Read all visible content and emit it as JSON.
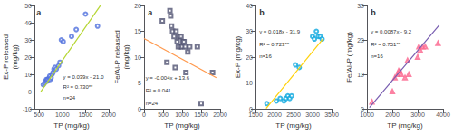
{
  "chart_data": [
    {
      "type": "scatter",
      "title": "a",
      "xlabel": "TP (mg/kg)",
      "ylabel": "Ex-P released\n(mg/kg)",
      "xlim": [
        400,
        2000
      ],
      "ylim": [
        -10,
        50
      ],
      "xticks": [
        500,
        1000,
        1500,
        2000
      ],
      "yticks": [
        -10,
        0,
        10,
        20,
        30,
        40,
        50
      ],
      "grid": false,
      "annotations": [
        "y = 0.039x - 21.0",
        "R² = 0.730**",
        "n=24"
      ],
      "series": [
        {
          "type": "scatter",
          "marker": "circle",
          "x": [
            590,
            620,
            640,
            660,
            670,
            680,
            700,
            720,
            730,
            740,
            760,
            780,
            800,
            820,
            840,
            870,
            920,
            950,
            980,
            1020,
            1200,
            1300,
            1500,
            1760
          ],
          "values": [
            4,
            5,
            6,
            7,
            6,
            7,
            7,
            8,
            9,
            7,
            8,
            10,
            11,
            13,
            14,
            13,
            15,
            17,
            30,
            29,
            32,
            36,
            45,
            38
          ]
        },
        {
          "type": "line",
          "line_style": "solid",
          "x": [
            538,
            1820
          ],
          "values": [
            -0.018,
            49.98
          ]
        }
      ]
    },
    {
      "type": "scatter",
      "title": "a",
      "xlabel": "TP (mg/kg)",
      "ylabel": "Fe/Al-P released\n(mg/kg)",
      "xlim": [
        0,
        2000
      ],
      "ylim": [
        0,
        20
      ],
      "xticks": [
        0,
        500,
        1000,
        1500,
        2000
      ],
      "yticks": [
        0,
        5,
        10,
        15,
        20
      ],
      "grid": false,
      "annotations": [
        "y = -0.004x + 13.6",
        "R² = 0.041",
        "n=24"
      ],
      "series": [
        {
          "type": "scatter",
          "marker": "square",
          "x": [
            480,
            600,
            680,
            700,
            720,
            750,
            790,
            820,
            840,
            870,
            900,
            920,
            950,
            970,
            1000,
            1020,
            1050,
            1080,
            1100,
            1150,
            1200,
            1400,
            1500,
            1800
          ],
          "values": [
            17,
            9,
            19,
            18,
            16,
            15,
            14,
            8,
            15,
            13,
            12,
            14,
            12,
            14,
            12,
            13,
            13,
            12,
            7,
            11,
            12,
            12,
            1,
            7
          ]
        },
        {
          "type": "line",
          "line_style": "solid",
          "x": [
            0,
            1900
          ],
          "values": [
            13.6,
            6
          ]
        }
      ]
    },
    {
      "type": "scatter",
      "title": "b",
      "xlabel": "TP (mg/kg)",
      "ylabel": "Ex-P (mg/kg)",
      "xlim": [
        1500,
        3500
      ],
      "ylim": [
        0,
        40
      ],
      "xticks": [
        1500,
        2000,
        2500,
        3000,
        3500
      ],
      "yticks": [
        0,
        10,
        20,
        30,
        40
      ],
      "grid": false,
      "annotations": [
        "y = 0.018x - 31.9",
        "R² = 0.723**",
        "n=16"
      ],
      "series": [
        {
          "type": "scatter",
          "marker": "circle",
          "x": [
            1800,
            2050,
            2150,
            2250,
            2300,
            2350,
            2400,
            2450,
            2550,
            2650,
            3000,
            3050,
            3100,
            3150,
            3200,
            3250
          ],
          "values": [
            2,
            3,
            4,
            3,
            4,
            5,
            4,
            5,
            17,
            16,
            28,
            27,
            30,
            28,
            28,
            27
          ]
        },
        {
          "type": "line",
          "line_style": "solid",
          "x": [
            1780,
            3280
          ],
          "values": [
            0.14,
            27.14
          ]
        }
      ]
    },
    {
      "type": "scatter",
      "title": "b",
      "xlabel": "TP (mg/kg)",
      "ylabel": "Fe/Al-P (mg/kg)",
      "xlim": [
        1000,
        4000
      ],
      "ylim": [
        0,
        30
      ],
      "xticks": [
        1000,
        2000,
        3000,
        4000
      ],
      "yticks": [
        0,
        10,
        20,
        30
      ],
      "grid": false,
      "annotations": [
        "y = 0.0087x - 9.2",
        "R² = 0.751**",
        "n=16"
      ],
      "series": [
        {
          "type": "scatter",
          "marker": "triangle",
          "x": [
            1200,
            2000,
            2100,
            2200,
            2250,
            2300,
            2350,
            2500,
            2600,
            2650,
            3000,
            3050,
            3100,
            3200,
            3300,
            3800
          ],
          "values": [
            2,
            5,
            9,
            10,
            11,
            11,
            10,
            9,
            14,
            10,
            15,
            18,
            17,
            18,
            18,
            19
          ]
        },
        {
          "type": "line",
          "line_style": "solid",
          "x": [
            1100,
            3850
          ],
          "values": [
            0.37,
            24.295
          ]
        }
      ]
    }
  ]
}
